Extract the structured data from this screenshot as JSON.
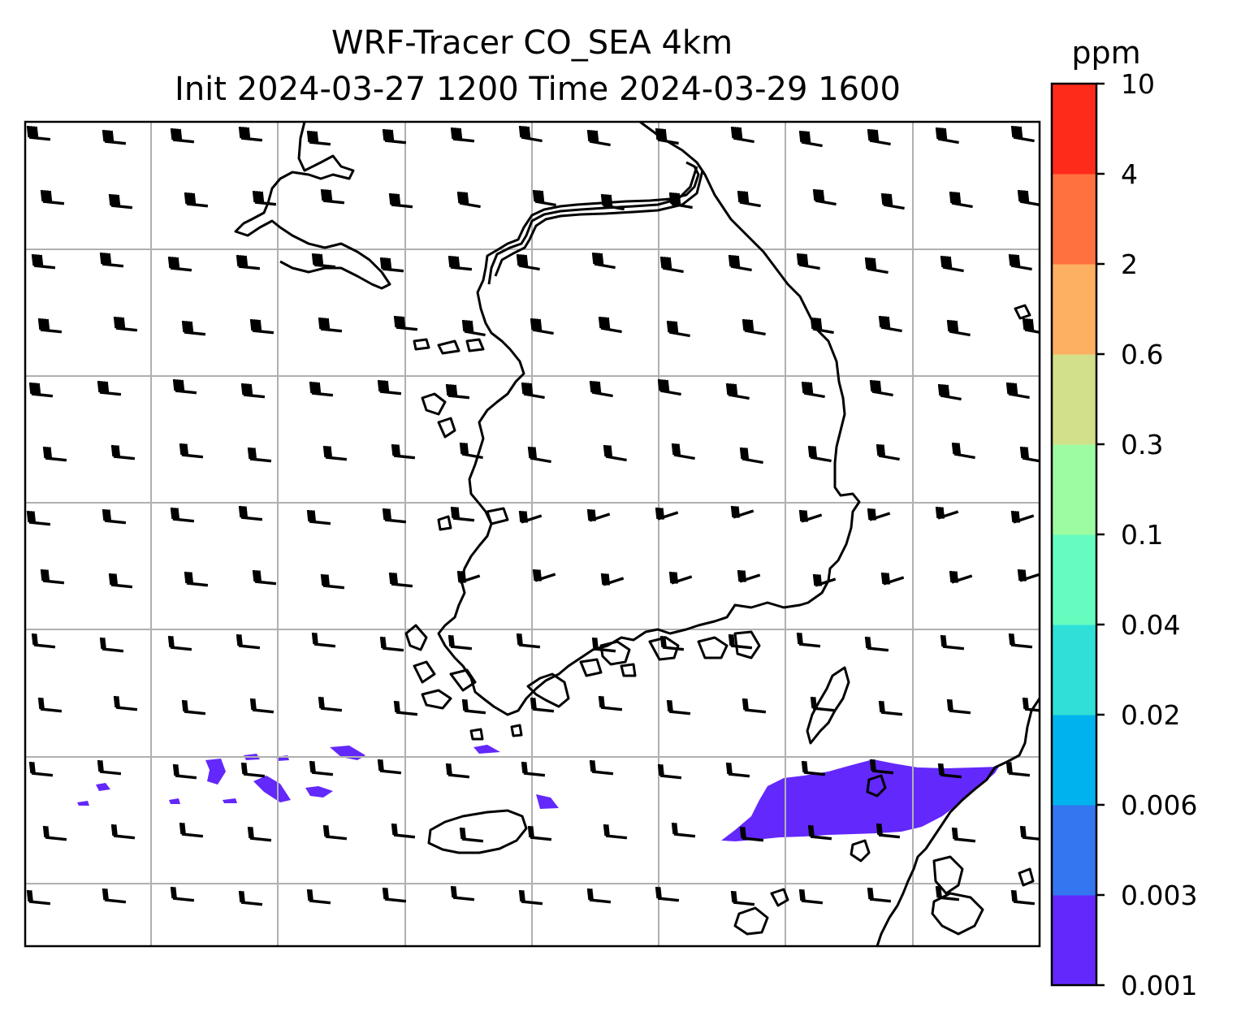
{
  "figure": {
    "title_line1": "WRF-Tracer CO_SEA 4km",
    "title_line2": "Init 2024-03-27 1200 Time 2024-03-29 1600"
  },
  "colorbar": {
    "unit": "ppm",
    "levels": [
      "0.001",
      "0.003",
      "0.006",
      "0.02",
      "0.04",
      "0.1",
      "0.3",
      "0.6",
      "2",
      "4",
      "10"
    ],
    "colors": [
      "#6328fb",
      "#3476f0",
      "#00b3ee",
      "#30e0d8",
      "#66fcbf",
      "#9dfca1",
      "#d2e08a",
      "#fdb061",
      "#ff7240",
      "#ff2b1a"
    ]
  },
  "map": {
    "gridlines": true,
    "coastline_color": "#000000",
    "tracer_fill_color": "#6328fb",
    "wind_barbs": "west-northwesterly flow across the domain"
  }
}
